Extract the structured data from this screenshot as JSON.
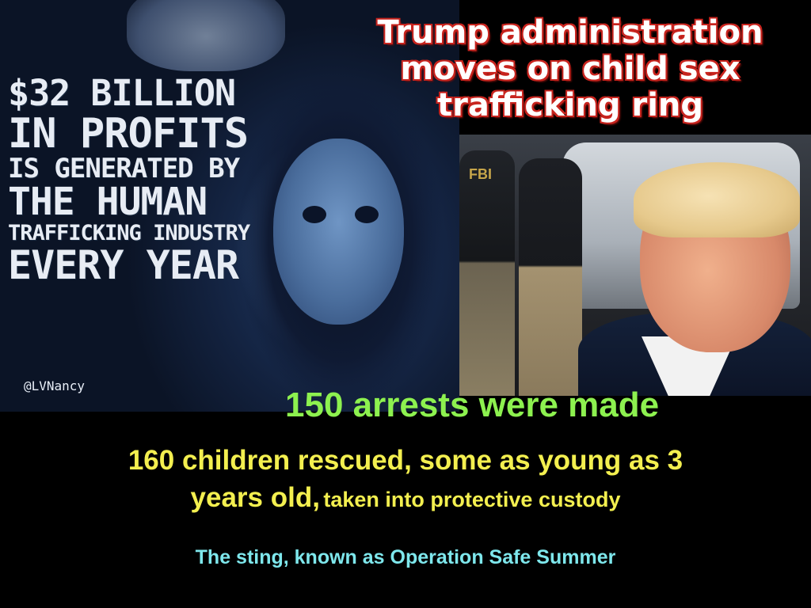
{
  "headline": {
    "line1": "Trump administration",
    "line2": "moves on child sex",
    "line3": "trafficking ring"
  },
  "left_graphic": {
    "line1": "$32 BILLION",
    "line2": "IN PROFITS",
    "line3": "IS GENERATED BY",
    "line4": "THE HUMAN",
    "line5": "TRAFFICKING INDUSTRY",
    "line6": "EVERY YEAR",
    "handle": "@LVNancy"
  },
  "photo": {
    "vest_text": "FBI"
  },
  "arrests": "150 arrests were made",
  "children": {
    "line1": "160 children rescued, some as young as 3",
    "line2_big": "years old,",
    "line2_small": "taken into protective custody"
  },
  "sting": "The sting, known as Operation Safe Summer",
  "colors": {
    "headline_outline": "#c8241e",
    "arrests": "#8df14f",
    "children": "#f3ef4f",
    "sting": "#7ee7ec"
  }
}
